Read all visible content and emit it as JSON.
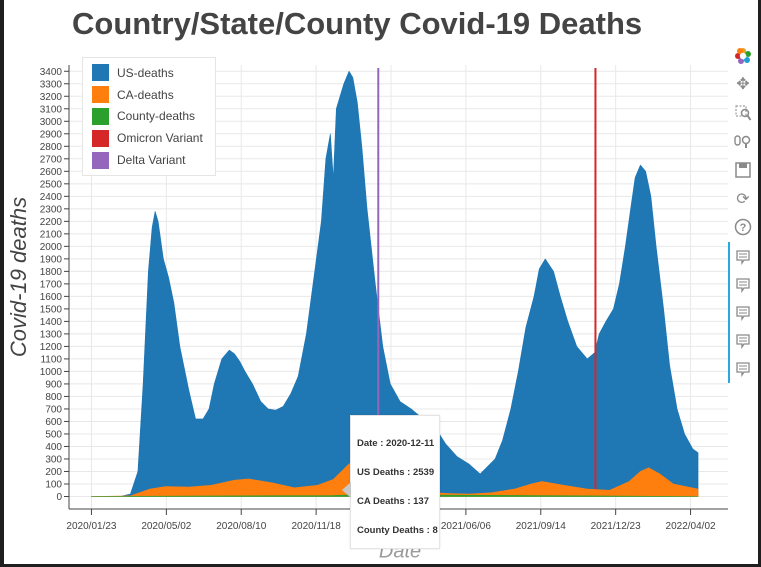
{
  "title": "Country/State/County Covid-19 Deaths",
  "toolbar": {
    "icons": [
      "bokeh-logo-icon",
      "pan-icon",
      "box-zoom-icon",
      "wheel-zoom-icon",
      "save-icon",
      "reset-icon",
      "help-icon",
      "hover-icon-1",
      "hover-icon-2",
      "hover-icon-3",
      "hover-icon-4",
      "hover-icon-5"
    ]
  },
  "tooltip": {
    "date_label": "Date",
    "date_value": "2020-12-11",
    "us_label": "US Deaths",
    "us_value": "2539",
    "ca_label": "CA Deaths",
    "ca_value": "137",
    "county_label": "County Deaths",
    "county_value": "8"
  },
  "chart_data": {
    "type": "area",
    "title": "Country/State/County Covid-19 Deaths",
    "xlabel": "Date",
    "ylabel": "Covid-19 deaths",
    "x_ticks": [
      "2020/01/23",
      "2020/05/02",
      "2020/08/10",
      "2020/11/18",
      "2021/02/26",
      "2021/06/06",
      "2021/09/14",
      "2021/12/23",
      "2022/04/02"
    ],
    "y_ticks": [
      0,
      100,
      200,
      300,
      400,
      500,
      600,
      700,
      800,
      900,
      1000,
      1100,
      1200,
      1300,
      1400,
      1500,
      1600,
      1700,
      1800,
      1900,
      2000,
      2100,
      2200,
      2300,
      2400,
      2500,
      2600,
      2700,
      2800,
      2900,
      3000,
      3100,
      3200,
      3300,
      3400
    ],
    "ylim": [
      -100,
      3450
    ],
    "xlim": [
      "2019-12-24",
      "2022-05-22"
    ],
    "grid": true,
    "legend_position": "top-left",
    "series": [
      {
        "name": "US-deaths",
        "color": "#1f77b4",
        "x": [
          "2020-01-23",
          "2020-03-01",
          "2020-03-15",
          "2020-03-25",
          "2020-04-01",
          "2020-04-08",
          "2020-04-13",
          "2020-04-17",
          "2020-04-21",
          "2020-04-28",
          "2020-05-05",
          "2020-05-12",
          "2020-05-20",
          "2020-06-01",
          "2020-06-10",
          "2020-06-20",
          "2020-06-28",
          "2020-07-05",
          "2020-07-15",
          "2020-07-25",
          "2020-08-01",
          "2020-08-08",
          "2020-08-15",
          "2020-08-25",
          "2020-09-05",
          "2020-09-15",
          "2020-09-25",
          "2020-10-05",
          "2020-10-15",
          "2020-10-25",
          "2020-11-05",
          "2020-11-15",
          "2020-11-25",
          "2020-12-01",
          "2020-12-07",
          "2020-12-11",
          "2020-12-15",
          "2020-12-25",
          "2021-01-01",
          "2021-01-06",
          "2021-01-12",
          "2021-01-18",
          "2021-01-25",
          "2021-02-05",
          "2021-02-15",
          "2021-02-25",
          "2021-03-10",
          "2021-03-25",
          "2021-04-10",
          "2021-04-25",
          "2021-05-10",
          "2021-05-25",
          "2021-06-10",
          "2021-06-25",
          "2021-07-05",
          "2021-07-15",
          "2021-07-25",
          "2021-08-05",
          "2021-08-15",
          "2021-08-25",
          "2021-09-05",
          "2021-09-12",
          "2021-09-20",
          "2021-10-01",
          "2021-10-10",
          "2021-10-20",
          "2021-11-01",
          "2021-11-15",
          "2021-11-25",
          "2021-12-01",
          "2021-12-10",
          "2021-12-20",
          "2021-12-28",
          "2022-01-05",
          "2022-01-12",
          "2022-01-18",
          "2022-01-25",
          "2022-02-01",
          "2022-02-08",
          "2022-02-15",
          "2022-02-25",
          "2022-03-05",
          "2022-03-15",
          "2022-03-25",
          "2022-04-05",
          "2022-04-12"
        ],
        "y": [
          0,
          0,
          20,
          200,
          900,
          1800,
          2150,
          2280,
          2200,
          1900,
          1750,
          1550,
          1200,
          850,
          620,
          620,
          700,
          900,
          1100,
          1170,
          1140,
          1080,
          1000,
          900,
          760,
          700,
          690,
          720,
          820,
          960,
          1300,
          1750,
          2200,
          2700,
          2900,
          2539,
          3100,
          3300,
          3400,
          3350,
          3150,
          2800,
          2300,
          1700,
          1200,
          900,
          760,
          700,
          620,
          560,
          420,
          320,
          260,
          180,
          240,
          300,
          450,
          700,
          1000,
          1350,
          1600,
          1820,
          1900,
          1800,
          1600,
          1400,
          1200,
          1100,
          1150,
          1300,
          1400,
          1500,
          1700,
          2000,
          2300,
          2550,
          2650,
          2600,
          2400,
          2000,
          1500,
          1050,
          700,
          500,
          380,
          350
        ]
      },
      {
        "name": "CA-deaths",
        "color": "#ff7f0e",
        "x": [
          "2020-01-23",
          "2020-03-15",
          "2020-04-10",
          "2020-05-01",
          "2020-06-01",
          "2020-07-01",
          "2020-08-01",
          "2020-08-20",
          "2020-09-20",
          "2020-10-20",
          "2020-11-20",
          "2020-12-11",
          "2021-01-01",
          "2021-01-15",
          "2021-01-28",
          "2021-02-15",
          "2021-03-10",
          "2021-04-10",
          "2021-05-10",
          "2021-06-10",
          "2021-07-10",
          "2021-08-10",
          "2021-09-01",
          "2021-09-15",
          "2021-10-15",
          "2021-11-15",
          "2021-12-15",
          "2022-01-10",
          "2022-01-25",
          "2022-02-05",
          "2022-02-20",
          "2022-03-10",
          "2022-04-12"
        ],
        "y": [
          0,
          5,
          60,
          80,
          75,
          90,
          130,
          140,
          110,
          70,
          90,
          137,
          260,
          320,
          260,
          150,
          70,
          40,
          25,
          20,
          30,
          60,
          100,
          120,
          90,
          60,
          50,
          120,
          200,
          230,
          180,
          100,
          60
        ]
      },
      {
        "name": "County-deaths",
        "color": "#2ca02c",
        "x": [
          "2020-01-23",
          "2020-12-11",
          "2021-01-15",
          "2022-04-12"
        ],
        "y": [
          0,
          8,
          15,
          0
        ]
      }
    ],
    "vlines": [
      {
        "name": "Omicron Variant",
        "color": "#d62728",
        "x": "2021-11-26"
      },
      {
        "name": "Delta Variant",
        "color": "#9467bd",
        "x": "2021-02-09"
      }
    ]
  }
}
